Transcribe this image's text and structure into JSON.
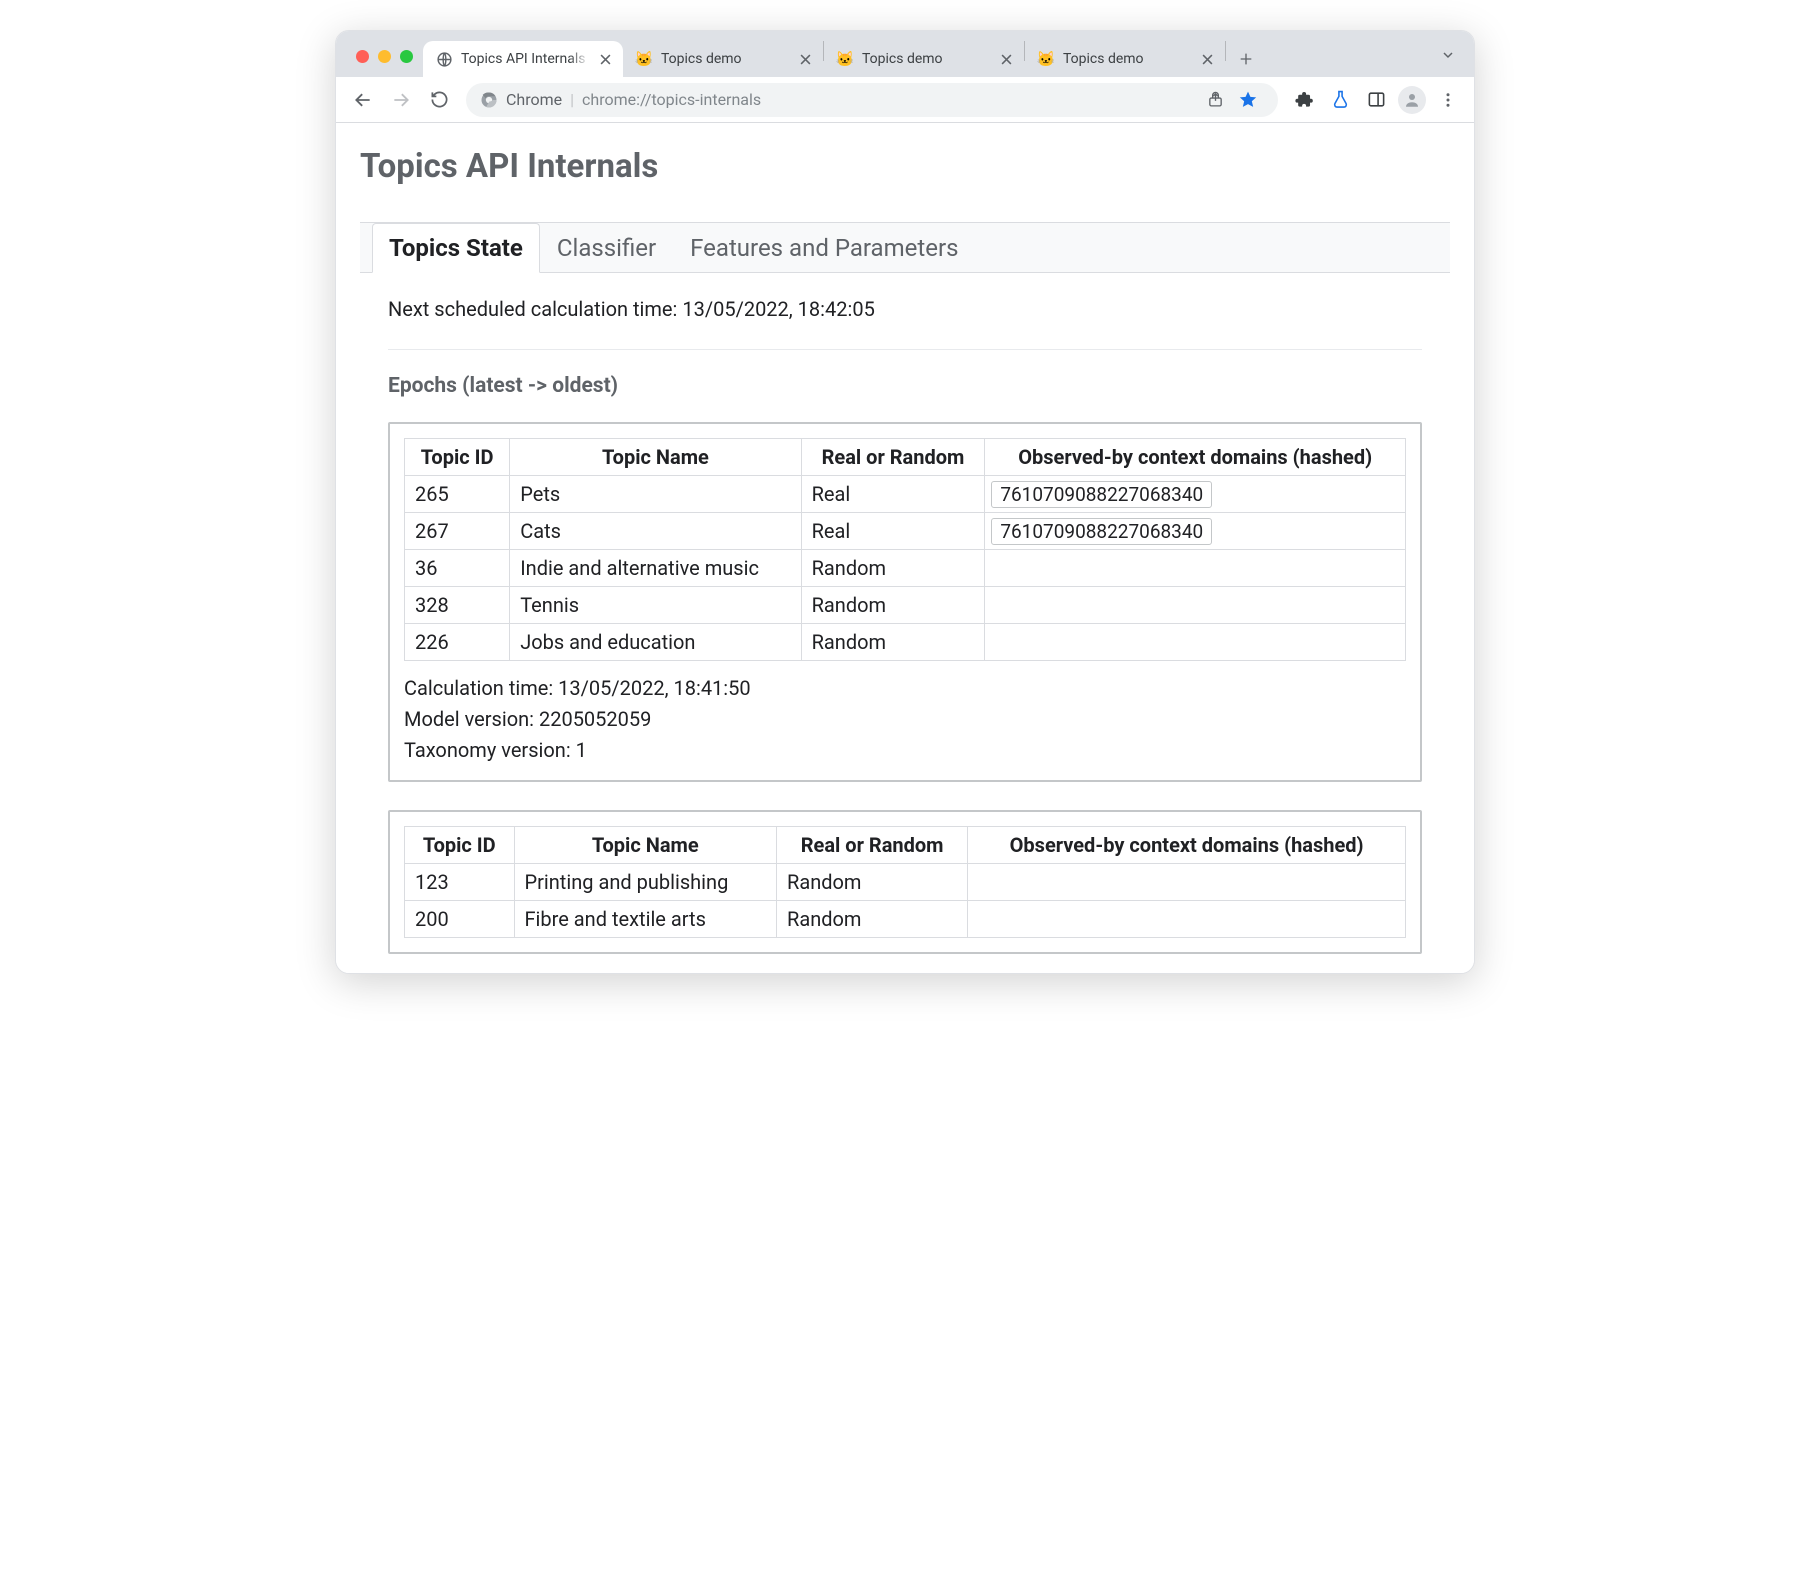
{
  "browser": {
    "tabs": [
      {
        "title": "Topics API Internals",
        "favicon": "globe",
        "active": true
      },
      {
        "title": "Topics demo",
        "favicon": "cat",
        "active": false
      },
      {
        "title": "Topics demo",
        "favicon": "cat",
        "active": false
      },
      {
        "title": "Topics demo",
        "favicon": "cat",
        "active": false
      }
    ],
    "omnibox": {
      "prefix": "Chrome",
      "url": "chrome://topics-internals"
    }
  },
  "page": {
    "title": "Topics API Internals",
    "tabs": [
      {
        "label": "Topics State",
        "active": true
      },
      {
        "label": "Classifier",
        "active": false
      },
      {
        "label": "Features and Parameters",
        "active": false
      }
    ],
    "next_calc_label": "Next scheduled calculation time: ",
    "next_calc_value": "13/05/2022, 18:42:05",
    "epochs_title": "Epochs (latest -> oldest)",
    "columns": [
      "Topic ID",
      "Topic Name",
      "Real or Random",
      "Observed-by context domains (hashed)"
    ],
    "epochs": [
      {
        "rows": [
          {
            "id": "265",
            "name": "Pets",
            "kind": "Real",
            "hash": "7610709088227068340"
          },
          {
            "id": "267",
            "name": "Cats",
            "kind": "Real",
            "hash": "7610709088227068340"
          },
          {
            "id": "36",
            "name": "Indie and alternative music",
            "kind": "Random",
            "hash": ""
          },
          {
            "id": "328",
            "name": "Tennis",
            "kind": "Random",
            "hash": ""
          },
          {
            "id": "226",
            "name": "Jobs and education",
            "kind": "Random",
            "hash": ""
          }
        ],
        "calc_time_label": "Calculation time: ",
        "calc_time_value": "13/05/2022, 18:41:50",
        "model_label": "Model version: ",
        "model_value": "2205052059",
        "tax_label": "Taxonomy version: ",
        "tax_value": "1"
      },
      {
        "rows": [
          {
            "id": "123",
            "name": "Printing and publishing",
            "kind": "Random",
            "hash": ""
          },
          {
            "id": "200",
            "name": "Fibre and textile arts",
            "kind": "Random",
            "hash": ""
          }
        ]
      }
    ]
  },
  "colors": {
    "heading": "#5f6368",
    "text": "#202124",
    "border": "#dadce0",
    "epoch_border": "#c4c7c9",
    "star": "#1a73e8",
    "tabstrip": "#dee1e6",
    "omnibox_bg": "#f1f3f4"
  }
}
